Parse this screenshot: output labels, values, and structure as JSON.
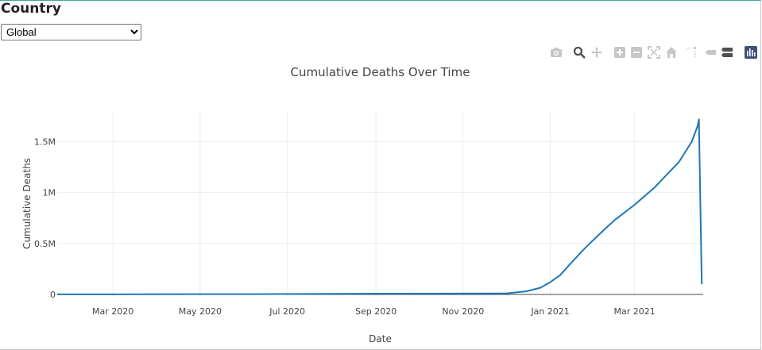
{
  "controls": {
    "country_label": "Country",
    "country_selected": "Global"
  },
  "modebar": {
    "icons": [
      "camera-icon",
      "zoom-icon",
      "pan-icon",
      "zoom-in-icon",
      "zoom-out-icon",
      "autoscale-icon",
      "reset-axes-icon",
      "spike-lines-icon",
      "hover-closest-icon",
      "hover-compare-icon",
      "plotly-logo-icon"
    ]
  },
  "colors": {
    "line": "#1f77b4",
    "grid": "#eeeeee",
    "modebar_icon": "#c7c7c7"
  },
  "chart_data": {
    "type": "line",
    "title": "Cumulative Deaths Over Time",
    "xlabel": "Date",
    "ylabel": "Cumulative Deaths",
    "xlim": [
      "2020-01-22",
      "2021-04-18"
    ],
    "ylim": [
      -16000,
      1800000
    ],
    "x_ticks": [
      "2020-03-01",
      "2020-05-01",
      "2020-07-01",
      "2020-09-01",
      "2020-11-01",
      "2021-01-01",
      "2021-03-01"
    ],
    "x_tick_labels": [
      "Mar 2020",
      "May 2020",
      "Jul 2020",
      "Sep 2020",
      "Nov 2020",
      "Jan 2021",
      "Mar 2021"
    ],
    "y_ticks": [
      0,
      500000,
      1000000,
      1500000
    ],
    "y_tick_labels": [
      "0",
      "0.5M",
      "1M",
      "1.5M"
    ],
    "grid": true,
    "series": [
      {
        "x": [
          "2020-01-22",
          "2020-06-01",
          "2020-09-01",
          "2020-11-01",
          "2020-12-01",
          "2020-12-15",
          "2020-12-25",
          "2021-01-01",
          "2021-01-08",
          "2021-01-15",
          "2021-01-25",
          "2021-02-05",
          "2021-02-15",
          "2021-03-01",
          "2021-03-15",
          "2021-04-01",
          "2021-04-10",
          "2021-04-14",
          "2021-04-15",
          "2021-04-16",
          "2021-04-17"
        ],
        "y": [
          0,
          3000,
          7000,
          8000,
          9000,
          30000,
          65000,
          120000,
          190000,
          300000,
          450000,
          600000,
          730000,
          880000,
          1050000,
          1300000,
          1500000,
          1650000,
          1720000,
          900000,
          100000
        ]
      }
    ]
  }
}
